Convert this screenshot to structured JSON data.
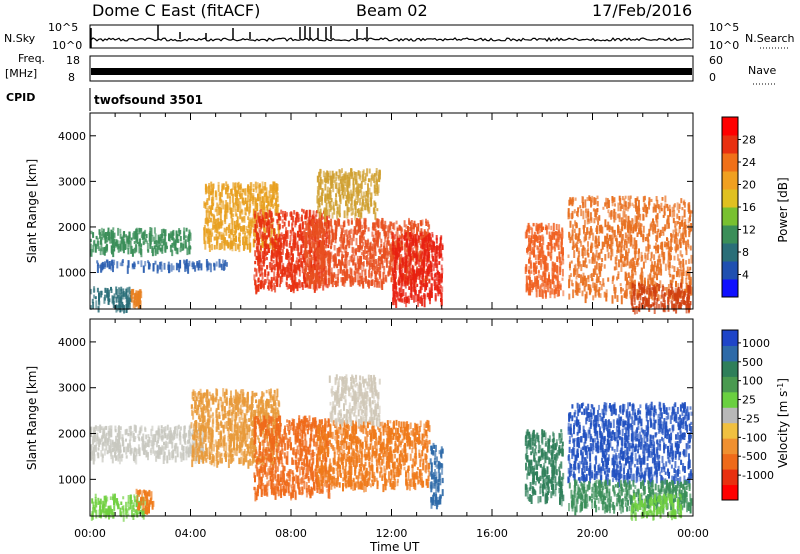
{
  "header": {
    "title": "Dome C East (fitACF)",
    "beam": "Beam 02",
    "date": "17/Feb/2016"
  },
  "side_labels": {
    "nsky": "N.Sky",
    "nsearch": "N.Search",
    "freq_top": "Freq.",
    "freq_unit": "[MHz]",
    "nave": "Nave",
    "cpid": "CPID"
  },
  "aux_ticks": {
    "nsky_left": [
      "10^5",
      "10^0"
    ],
    "nsky_right": [
      "10^5",
      "10^0"
    ],
    "freq_left": [
      "18",
      "8"
    ],
    "freq_right": [
      "60",
      "0"
    ]
  },
  "cpid_text": "twofsound 3501",
  "chart_data": [
    {
      "type": "heatmap",
      "name": "power",
      "ylabel": "Slant Range [km]",
      "yticks": [
        "1000",
        "2000",
        "3000",
        "4000"
      ],
      "ylim": [
        200,
        4500
      ],
      "xlim": [
        0,
        24
      ],
      "colorbar": {
        "label": "Power [dB]",
        "ticks": [
          "4",
          "8",
          "12",
          "16",
          "20",
          "24",
          "28"
        ],
        "range": [
          0,
          32
        ],
        "colors": [
          "#1010ff",
          "#2050b0",
          "#2a6e78",
          "#3a8e58",
          "#78c030",
          "#e0c020",
          "#f0a020",
          "#f07018",
          "#e83010",
          "#ff0000"
        ]
      },
      "bands": [
        {
          "t": [
            0.0,
            1.6
          ],
          "r": [
            250,
            700
          ],
          "color": "#2a6e78"
        },
        {
          "t": [
            1.6,
            2.0
          ],
          "r": [
            350,
            650
          ],
          "color": "#e88020"
        },
        {
          "t": [
            0.2,
            5.5
          ],
          "r": [
            1150,
            1300
          ],
          "color": "#2a5eb0"
        },
        {
          "t": [
            0.0,
            4.0
          ],
          "r": [
            1500,
            2000
          ],
          "color": "#3a8e58"
        },
        {
          "t": [
            4.5,
            7.5
          ],
          "r": [
            1600,
            3000
          ],
          "color": "#e8a020"
        },
        {
          "t": [
            6.5,
            9.5
          ],
          "r": [
            700,
            2400
          ],
          "color": "#e83010"
        },
        {
          "t": [
            8.5,
            13.5
          ],
          "r": [
            800,
            2200
          ],
          "color": "#e85020"
        },
        {
          "t": [
            9.0,
            11.5
          ],
          "r": [
            2300,
            3300
          ],
          "color": "#d0a030"
        },
        {
          "t": [
            12.0,
            14.0
          ],
          "r": [
            400,
            1900
          ],
          "color": "#e82010"
        },
        {
          "t": [
            17.3,
            18.8
          ],
          "r": [
            600,
            2100
          ],
          "color": "#f06020"
        },
        {
          "t": [
            19.0,
            23.9
          ],
          "r": [
            500,
            2700
          ],
          "color": "#e87020"
        },
        {
          "t": [
            21.5,
            23.9
          ],
          "r": [
            250,
            800
          ],
          "color": "#d04010"
        }
      ]
    },
    {
      "type": "heatmap",
      "name": "velocity",
      "ylabel": "Slant Range [km]",
      "yticks": [
        "1000",
        "2000",
        "3000",
        "4000"
      ],
      "ylim": [
        200,
        4500
      ],
      "xlim": [
        0,
        24
      ],
      "xticks": [
        "00:00",
        "04:00",
        "08:00",
        "12:00",
        "16:00",
        "20:00",
        "00:00"
      ],
      "xlabel": "Time UT",
      "colorbar": {
        "label": "Velocity [m s^-1]",
        "ticks": [
          "1000",
          "500",
          "100",
          "25",
          "-25",
          "-100",
          "-500",
          "-1000"
        ],
        "colors": [
          "#1f45c8",
          "#2e6aa8",
          "#2f7f5a",
          "#4a9a50",
          "#6ad040",
          "#b8b8b8",
          "#f0c040",
          "#f09030",
          "#ef6a1a",
          "#e83010",
          "#ff0000"
        ]
      },
      "bands": [
        {
          "t": [
            0.0,
            2.2
          ],
          "r": [
            250,
            700
          ],
          "color": "#70d040"
        },
        {
          "t": [
            1.8,
            2.5
          ],
          "r": [
            400,
            800
          ],
          "color": "#ef7a1a"
        },
        {
          "t": [
            0.0,
            4.5
          ],
          "r": [
            1500,
            2200
          ],
          "color": "#c8c8c0"
        },
        {
          "t": [
            4.0,
            7.5
          ],
          "r": [
            1400,
            3000
          ],
          "color": "#e89a3a"
        },
        {
          "t": [
            6.5,
            9.5
          ],
          "r": [
            700,
            2400
          ],
          "color": "#ef6a1a"
        },
        {
          "t": [
            9.0,
            13.5
          ],
          "r": [
            900,
            2300
          ],
          "color": "#ef7a1a"
        },
        {
          "t": [
            9.5,
            11.5
          ],
          "r": [
            2300,
            3300
          ],
          "color": "#d0c8b8"
        },
        {
          "t": [
            13.5,
            14.0
          ],
          "r": [
            500,
            1800
          ],
          "color": "#2e6aa8"
        },
        {
          "t": [
            17.3,
            18.8
          ],
          "r": [
            600,
            2100
          ],
          "color": "#2f7f5a"
        },
        {
          "t": [
            19.0,
            23.9
          ],
          "r": [
            1000,
            2700
          ],
          "color": "#2050c0"
        },
        {
          "t": [
            19.0,
            23.9
          ],
          "r": [
            400,
            1000
          ],
          "color": "#3a8e58"
        },
        {
          "t": [
            21.5,
            23.5
          ],
          "r": [
            250,
            700
          ],
          "color": "#70d040"
        }
      ]
    }
  ]
}
